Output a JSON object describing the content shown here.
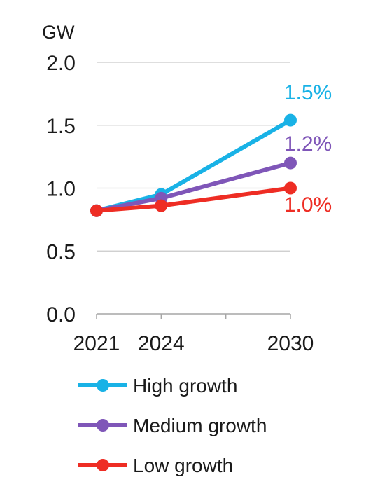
{
  "chart_data": {
    "type": "line",
    "ylabel": "GW",
    "x": [
      "2021",
      "2024",
      "2030"
    ],
    "x_values": [
      2021,
      2024,
      2030
    ],
    "ylim": [
      0.0,
      2.0
    ],
    "yticks": [
      "0.0",
      "0.5",
      "1.0",
      "1.5",
      "2.0"
    ],
    "grid": true,
    "legend_position": "bottom",
    "series": [
      {
        "name": "High growth",
        "color": "#19b2e6",
        "values": [
          0.82,
          0.95,
          1.54
        ],
        "end_label": "1.5%"
      },
      {
        "name": "Medium growth",
        "color": "#7f56b8",
        "values": [
          0.82,
          0.92,
          1.2
        ],
        "end_label": "1.2%"
      },
      {
        "name": "Low growth",
        "color": "#ee2d24",
        "values": [
          0.82,
          0.86,
          1.0
        ],
        "end_label": "1.0%"
      }
    ]
  }
}
